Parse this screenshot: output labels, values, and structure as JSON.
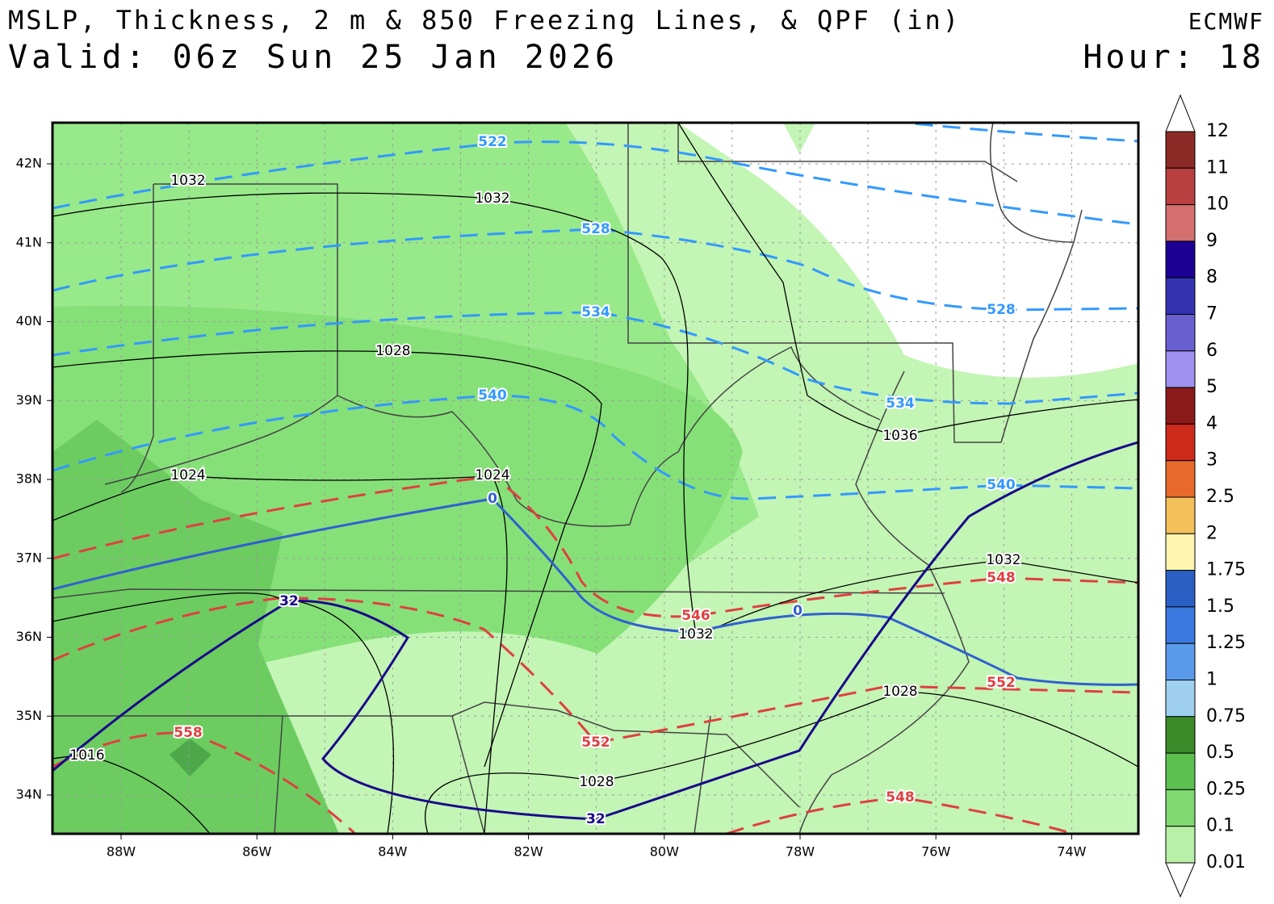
{
  "header": {
    "title": "MSLP, Thickness, 2 m & 850 Freezing Lines, & QPF (in)",
    "valid": "Valid: 06z Sun 25 Jan 2026",
    "model": "ECMWF",
    "hour": "Hour: 18"
  },
  "map": {
    "lat_labels": [
      "42N",
      "41N",
      "40N",
      "39N",
      "38N",
      "37N",
      "36N",
      "35N",
      "34N"
    ],
    "lon_labels": [
      "88W",
      "86W",
      "84W",
      "82W",
      "80W",
      "78W",
      "76W",
      "74W"
    ],
    "contour_labels": [
      "522",
      "1032",
      "1032",
      "528",
      "534",
      "1028",
      "540",
      "1024",
      "1024",
      "0",
      "534",
      "1036",
      "540",
      "528",
      "1032",
      "548",
      "546",
      "1032",
      "0",
      "32",
      "558",
      "1016",
      "552",
      "1028",
      "32",
      "1028",
      "552",
      "548"
    ]
  },
  "colorbar": {
    "levels": [
      "12",
      "11",
      "10",
      "9",
      "8",
      "7",
      "6",
      "5",
      "4",
      "3",
      "2.5",
      "2",
      "1.75",
      "1.5",
      "1.25",
      "1",
      "0.75",
      "0.5",
      "0.25",
      "0.1",
      "0.01"
    ],
    "colors": [
      "#8b2a26",
      "#b84040",
      "#d47070",
      "#1c0094",
      "#3333b0",
      "#6a5fd0",
      "#a090f0",
      "#8b1a1a",
      "#cc2a1a",
      "#e86a2a",
      "#f3c05a",
      "#fff5b0",
      "#2b5fc4",
      "#3a7ae0",
      "#5a9aea",
      "#9fd0f0",
      "#3a8a2a",
      "#5cc050",
      "#80d870",
      "#b8f0a8"
    ]
  }
}
